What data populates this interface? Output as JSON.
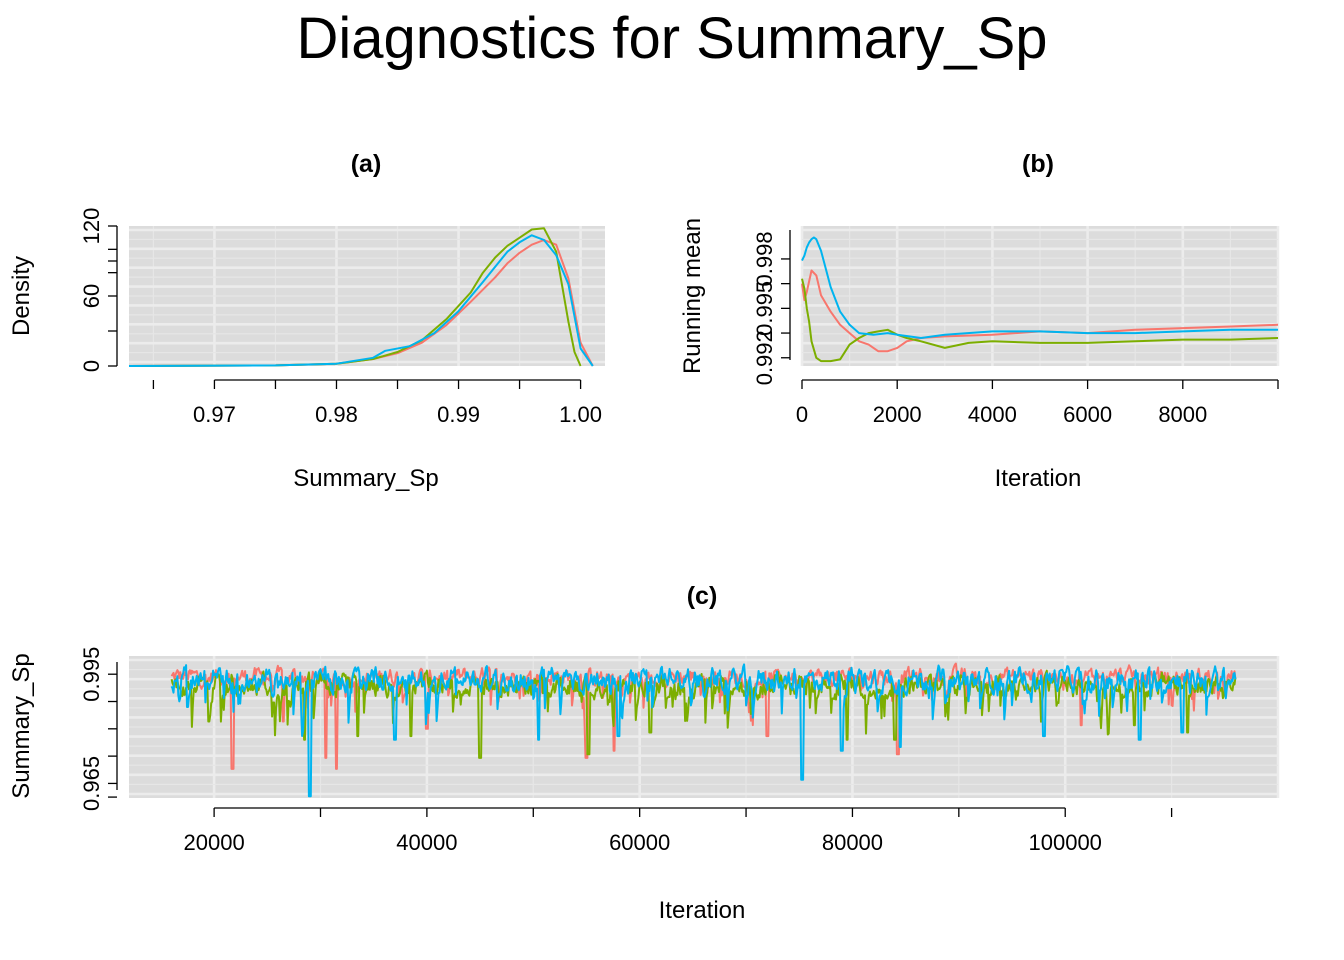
{
  "title": "Diagnostics for Summary_Sp",
  "colors": {
    "chain1": "#F8766D",
    "chain2": "#7CAE00",
    "chain3": "#00B4EF",
    "panel_bg": "#DCDCDC",
    "grid": "#ECECEC"
  },
  "chart_data": [
    {
      "id": "a",
      "type": "line",
      "title": "(a)",
      "xlabel": "Summary_Sp",
      "ylabel": "Density",
      "xlim": [
        0.963,
        1.002
      ],
      "ylim": [
        0,
        120
      ],
      "x_ticks": [
        0.97,
        0.98,
        0.99,
        1.0
      ],
      "x_tick_labels": [
        "0.97",
        "0.98",
        "0.99",
        "1.00"
      ],
      "y_ticks": [
        0,
        60,
        120
      ],
      "y_tick_labels": [
        "0",
        "60",
        "120"
      ],
      "grid": true,
      "series": [
        {
          "color": "#F8766D",
          "x": [
            0.963,
            0.975,
            0.98,
            0.983,
            0.985,
            0.987,
            0.989,
            0.991,
            0.993,
            0.994,
            0.995,
            0.996,
            0.997,
            0.998,
            0.999,
            1.0,
            1.001
          ],
          "y": [
            0,
            0.5,
            2,
            6,
            11,
            20,
            35,
            55,
            76,
            88,
            97,
            104,
            108,
            104,
            75,
            20,
            0
          ]
        },
        {
          "color": "#7CAE00",
          "x": [
            0.963,
            0.975,
            0.98,
            0.983,
            0.985,
            0.987,
            0.989,
            0.991,
            0.992,
            0.993,
            0.994,
            0.995,
            0.996,
            0.997,
            0.998,
            0.999,
            0.9995,
            1.0
          ],
          "y": [
            0,
            0.5,
            2,
            6,
            12,
            22,
            40,
            63,
            80,
            93,
            103,
            110,
            117,
            118,
            98,
            38,
            12,
            0
          ]
        },
        {
          "color": "#00B4EF",
          "x": [
            0.963,
            0.975,
            0.98,
            0.983,
            0.984,
            0.986,
            0.988,
            0.99,
            0.992,
            0.993,
            0.994,
            0.995,
            0.996,
            0.997,
            0.998,
            0.999,
            1.0,
            1.001
          ],
          "y": [
            0,
            0.5,
            2,
            7,
            13,
            17,
            28,
            47,
            72,
            85,
            98,
            106,
            112,
            108,
            95,
            70,
            15,
            0
          ]
        }
      ]
    },
    {
      "id": "b",
      "type": "line",
      "title": "(b)",
      "xlabel": "Iteration",
      "ylabel": "Running mean",
      "xlim": [
        0,
        10000
      ],
      "ylim": [
        0.9915,
        1.0
      ],
      "x_ticks": [
        0,
        2000,
        4000,
        6000,
        8000
      ],
      "x_tick_labels": [
        "0",
        "2000",
        "4000",
        "6000",
        "8000"
      ],
      "y_ticks": [
        0.992,
        0.995,
        0.998
      ],
      "y_tick_labels": [
        "0.992",
        "0.995",
        "0.998"
      ],
      "grid": true,
      "series": [
        {
          "color": "#F8766D",
          "x": [
            0,
            50,
            100,
            200,
            300,
            400,
            600,
            800,
            1000,
            1200,
            1400,
            1600,
            1800,
            2000,
            2200,
            2500,
            3000,
            4000,
            5000,
            6000,
            7000,
            8000,
            9000,
            10000
          ],
          "y": [
            0.9965,
            0.9955,
            0.996,
            0.9973,
            0.997,
            0.9958,
            0.9948,
            0.994,
            0.9935,
            0.993,
            0.9928,
            0.9924,
            0.9924,
            0.9926,
            0.993,
            0.9932,
            0.9933,
            0.9934,
            0.9936,
            0.9935,
            0.9937,
            0.9938,
            0.9939,
            0.994
          ]
        },
        {
          "color": "#7CAE00",
          "x": [
            0,
            50,
            100,
            150,
            200,
            300,
            400,
            600,
            800,
            1000,
            1200,
            1400,
            1600,
            1800,
            2000,
            2200,
            2500,
            3000,
            3500,
            4000,
            5000,
            6000,
            7000,
            8000,
            9000,
            10000
          ],
          "y": [
            0.9968,
            0.9962,
            0.995,
            0.9942,
            0.993,
            0.992,
            0.9918,
            0.9918,
            0.9919,
            0.9928,
            0.9932,
            0.9935,
            0.9936,
            0.9937,
            0.9934,
            0.9932,
            0.993,
            0.9926,
            0.9929,
            0.993,
            0.9929,
            0.9929,
            0.993,
            0.9931,
            0.9931,
            0.9932
          ]
        },
        {
          "color": "#00B4EF",
          "x": [
            0,
            50,
            100,
            150,
            200,
            250,
            300,
            400,
            500,
            600,
            800,
            1000,
            1200,
            1500,
            1800,
            2000,
            2500,
            3000,
            4000,
            5000,
            6000,
            7000,
            8000,
            9000,
            10000
          ],
          "y": [
            0.9979,
            0.9982,
            0.9987,
            0.999,
            0.9992,
            0.9993,
            0.9992,
            0.9985,
            0.9974,
            0.9963,
            0.9948,
            0.994,
            0.9935,
            0.9934,
            0.9935,
            0.9934,
            0.9932,
            0.9934,
            0.9936,
            0.9936,
            0.9935,
            0.9935,
            0.9936,
            0.9937,
            0.9937
          ]
        }
      ]
    },
    {
      "id": "c",
      "type": "line",
      "title": "(c)",
      "xlabel": "Iteration",
      "ylabel": "Summary_Sp",
      "xlim": [
        12000,
        120000
      ],
      "ylim": [
        0.961,
        1.0
      ],
      "x_ticks": [
        20000,
        40000,
        60000,
        80000,
        100000
      ],
      "x_tick_labels": [
        "20000",
        "40000",
        "60000",
        "80000",
        "100000"
      ],
      "y_ticks": [
        0.965,
        0.995
      ],
      "y_tick_labels": [
        "0.965",
        "0.995"
      ],
      "grid": true,
      "trace_start": 16000,
      "trace_end": 116000,
      "series": [
        {
          "color": "#F8766D",
          "typical": 0.9935,
          "spread": 0.0032,
          "dips": [
            [
              21700,
              0.969
            ],
            [
              26500,
              0.982
            ],
            [
              30500,
              0.972
            ],
            [
              31500,
              0.969
            ],
            [
              40000,
              0.98
            ],
            [
              55000,
              0.972
            ],
            [
              57600,
              0.974
            ],
            [
              72000,
              0.978
            ],
            [
              84300,
              0.973
            ],
            [
              101500,
              0.981
            ]
          ]
        },
        {
          "color": "#7CAE00",
          "typical": 0.991,
          "spread": 0.004,
          "dips": [
            [
              19500,
              0.982
            ],
            [
              28500,
              0.977
            ],
            [
              33500,
              0.978
            ],
            [
              38500,
              0.978
            ],
            [
              45000,
              0.972
            ],
            [
              55200,
              0.973
            ],
            [
              61000,
              0.979
            ],
            [
              79500,
              0.977
            ],
            [
              84000,
              0.977
            ],
            [
              106500,
              0.981
            ],
            [
              111500,
              0.979
            ]
          ]
        },
        {
          "color": "#00B4EF",
          "typical": 0.9925,
          "spread": 0.0042,
          "dips": [
            [
              17500,
              0.986
            ],
            [
              29000,
              0.9615
            ],
            [
              37000,
              0.977
            ],
            [
              50500,
              0.977
            ],
            [
              58000,
              0.978
            ],
            [
              75300,
              0.966
            ],
            [
              79000,
              0.974
            ],
            [
              84500,
              0.975
            ],
            [
              98000,
              0.978
            ],
            [
              107000,
              0.977
            ],
            [
              111000,
              0.979
            ]
          ]
        }
      ]
    }
  ]
}
